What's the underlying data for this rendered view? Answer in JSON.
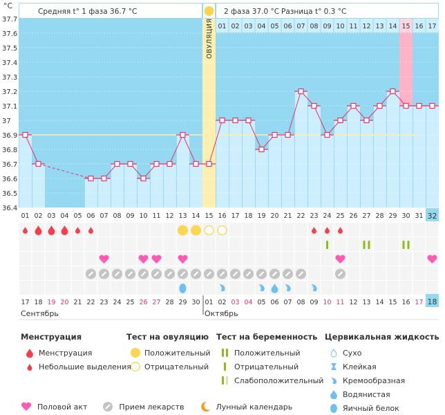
{
  "header": {
    "unit": "°C",
    "phase1": "Средняя t° 1 фаза 36.7 °C",
    "phase2": "2 фаза 37.0 °C",
    "diff": "Разница t° 0.3 °C",
    "ovulation_label": "ОВУЛЯЦИЯ"
  },
  "chart_data": {
    "type": "line",
    "title": "Basal body temperature chart",
    "ylabel": "°C",
    "ylim": [
      36.4,
      37.7
    ],
    "yticks": [
      "37.7",
      "37.6",
      "37.5",
      "37.4",
      "37.3",
      "37.2",
      "37.1",
      "37",
      "36.9",
      "36.8",
      "36.7",
      "36.6",
      "36.5",
      "36.4"
    ],
    "coverline": 36.9,
    "ovulation_day": 15,
    "highlight_day": 30,
    "current_day": 32,
    "cycle_days": [
      "01",
      "02",
      "03",
      "04",
      "05",
      "06",
      "07",
      "08",
      "09",
      "10",
      "11",
      "12",
      "13",
      "14",
      "15",
      "16",
      "17",
      "18",
      "19",
      "20",
      "21",
      "22",
      "23",
      "24",
      "25",
      "26",
      "27",
      "28",
      "29",
      "30",
      "31",
      "32"
    ],
    "phase2_day_labels": [
      "01",
      "02",
      "03",
      "04",
      "05",
      "06",
      "07",
      "08",
      "09",
      "10",
      "11",
      "12",
      "13",
      "14",
      "15",
      "16",
      "17"
    ],
    "temperatures": [
      36.9,
      36.7,
      null,
      null,
      null,
      36.6,
      36.6,
      36.7,
      36.7,
      36.6,
      36.7,
      36.7,
      36.9,
      36.7,
      36.7,
      37.0,
      37.0,
      37.0,
      36.8,
      36.9,
      36.9,
      37.2,
      37.1,
      36.9,
      37.0,
      37.1,
      37.0,
      37.1,
      37.2,
      37.1,
      37.1,
      37.1
    ],
    "dashed_segment": [
      2,
      6
    ],
    "calendar_dates": [
      "17",
      "18",
      "19",
      "20",
      "21",
      "22",
      "23",
      "24",
      "25",
      "26",
      "27",
      "28",
      "29",
      "30",
      "01",
      "02",
      "03",
      "04",
      "05",
      "06",
      "07",
      "08",
      "09",
      "10",
      "11",
      "12",
      "13",
      "14",
      "15",
      "16",
      "17",
      "18"
    ],
    "weekend_dates_idx": [
      2,
      3,
      9,
      10,
      16,
      17,
      23,
      24,
      30
    ],
    "months": [
      {
        "name": "Сентябрь",
        "start": 0
      },
      {
        "name": "Октябрь",
        "start": 14
      }
    ],
    "symbols": {
      "menstruation": {
        "1": "small",
        "2": "large",
        "3": "large",
        "4": "large",
        "5": "small",
        "6": "small",
        "23": "small",
        "24": "small",
        "25": "small"
      },
      "ovulation_test": {
        "13": "positive",
        "14": "positive",
        "15": "negative",
        "16": "negative"
      },
      "pregnancy_test": {
        "24": "negative",
        "27": "positive",
        "30": "positive"
      },
      "intercourse": [
        7,
        10,
        11,
        13,
        25,
        32
      ],
      "medication": [
        6,
        7,
        8,
        9,
        10,
        11,
        12,
        13,
        14,
        15,
        16,
        17,
        18,
        19,
        20,
        21,
        22,
        25
      ],
      "cervical_fluid": {
        "13": "egg-white",
        "16": "creamy",
        "19": "creamy",
        "20": "watery",
        "21": "creamy",
        "23": "creamy"
      }
    }
  },
  "legend": {
    "menstruation": {
      "title": "Менструация",
      "items": [
        "Менструация",
        "Небольшие выделения"
      ]
    },
    "ovulation_test": {
      "title": "Тест на овуляцию",
      "items": [
        "Положительный",
        "Отрицательный"
      ]
    },
    "pregnancy_test": {
      "title": "Тест на беременность",
      "items": [
        "Положительный",
        "Отрицательный",
        "Слабоположительный"
      ]
    },
    "cervical": {
      "title": "Цервикальная жидкость",
      "items": [
        "Сухо",
        "Клейкая",
        "Кремообразная",
        "Водянистая",
        "Яичный белок"
      ]
    },
    "bottom": [
      "Половой акт",
      "Прием лекарств",
      "Лунный календарь"
    ]
  },
  "colors": {
    "chart_bg": "#94d8f2",
    "bar": "#cdeefc",
    "line": "#e8336a",
    "ovulation": "#fcefb0",
    "highlight": "#ffb3c6",
    "blood": "#f5404c",
    "ov_test": "#fcd64e",
    "heart": "#ff5ab4",
    "pill": "#c4c4c4",
    "green": "#8fba1a",
    "fluid": "#6fc0f0",
    "weekend": "#e8336a"
  }
}
